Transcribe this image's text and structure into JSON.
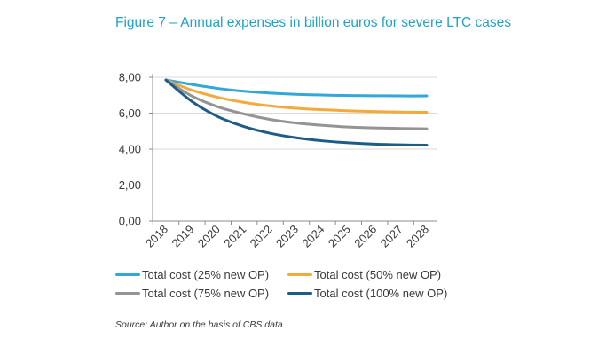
{
  "figure": {
    "title": "Figure 7 – Annual expenses in billion euros for severe LTC cases",
    "source": "Source: Author on the basis of CBS data"
  },
  "chart_data": {
    "type": "line",
    "title": "Figure 7 – Annual expenses in billion euros for severe LTC cases",
    "xlabel": "",
    "ylabel": "",
    "x": [
      "2018",
      "2019",
      "2020",
      "2021",
      "2022",
      "2023",
      "2024",
      "2025",
      "2026",
      "2027",
      "2028"
    ],
    "ylim": [
      0,
      8
    ],
    "yticks": [
      "0,00",
      "2,00",
      "4,00",
      "6,00",
      "8,00"
    ],
    "grid": "horizontal",
    "legend_position": "bottom",
    "series": [
      {
        "name": "Total cost (25% new OP)",
        "color": "#31a8d8",
        "values": [
          7.85,
          7.6,
          7.38,
          7.22,
          7.12,
          7.05,
          7.01,
          6.98,
          6.97,
          6.96,
          6.96
        ]
      },
      {
        "name": "Total cost (50% new OP)",
        "color": "#f4a93b",
        "values": [
          7.85,
          7.28,
          6.88,
          6.6,
          6.4,
          6.27,
          6.19,
          6.13,
          6.09,
          6.06,
          6.05
        ]
      },
      {
        "name": "Total cost (75% new OP)",
        "color": "#949494",
        "values": [
          7.85,
          6.95,
          6.35,
          5.95,
          5.65,
          5.45,
          5.32,
          5.23,
          5.18,
          5.15,
          5.13
        ]
      },
      {
        "name": "Total cost (100% new OP)",
        "color": "#1d5c87",
        "values": [
          7.85,
          6.65,
          5.8,
          5.25,
          4.88,
          4.63,
          4.46,
          4.35,
          4.28,
          4.24,
          4.22
        ]
      }
    ]
  }
}
